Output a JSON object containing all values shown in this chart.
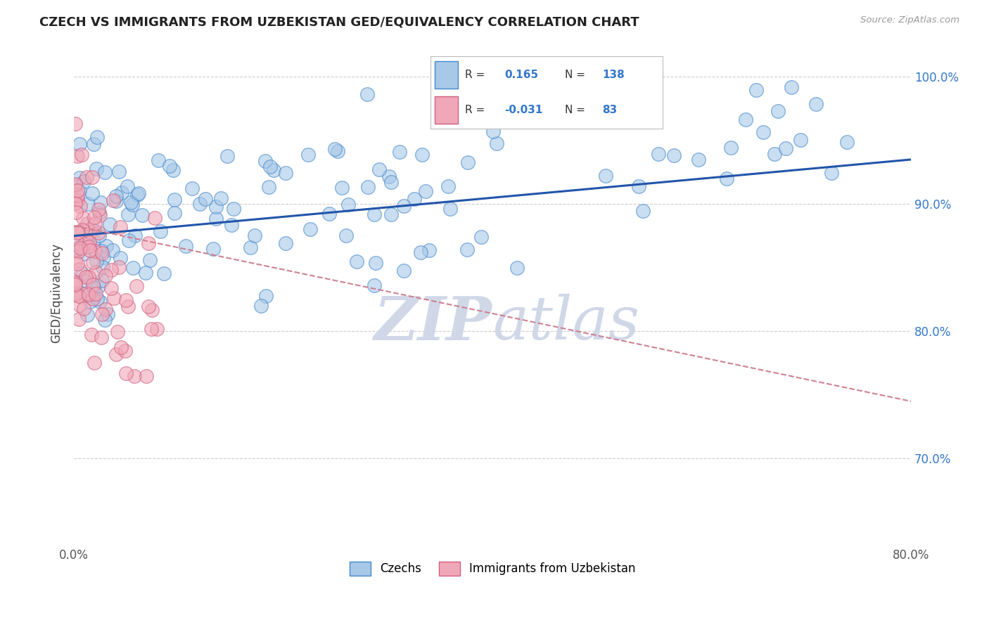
{
  "title": "CZECH VS IMMIGRANTS FROM UZBEKISTAN GED/EQUIVALENCY CORRELATION CHART",
  "source": "Source: ZipAtlas.com",
  "ylabel": "GED/Equivalency",
  "xlim": [
    0.0,
    0.8
  ],
  "ylim": [
    0.635,
    1.025
  ],
  "yticks": [
    0.7,
    0.8,
    0.9,
    1.0
  ],
  "ytick_labels": [
    "70.0%",
    "80.0%",
    "90.0%",
    "100.0%"
  ],
  "xtick_labels": [
    "0.0%",
    "80.0%"
  ],
  "legend_r_blue": "0.165",
  "legend_n_blue": "138",
  "legend_r_pink": "-0.031",
  "legend_n_pink": "83",
  "legend_label_blue": "Czechs",
  "legend_label_pink": "Immigrants from Uzbekistan",
  "blue_face": "#a8c8e8",
  "blue_edge": "#4488cc",
  "pink_face": "#f0a8b8",
  "pink_edge": "#d06080",
  "blue_line": "#2255aa",
  "pink_line": "#d08090",
  "text_color_blue": "#3377cc",
  "text_color_dark": "#222222",
  "grid_color": "#cccccc",
  "watermark_color": "#d0d8e8",
  "blue_trend_x0": 0.0,
  "blue_trend_y0": 0.875,
  "blue_trend_x1": 0.8,
  "blue_trend_y1": 0.935,
  "pink_trend_x0": 0.0,
  "pink_trend_y0": 0.883,
  "pink_trend_x1": 0.8,
  "pink_trend_y1": 0.745
}
